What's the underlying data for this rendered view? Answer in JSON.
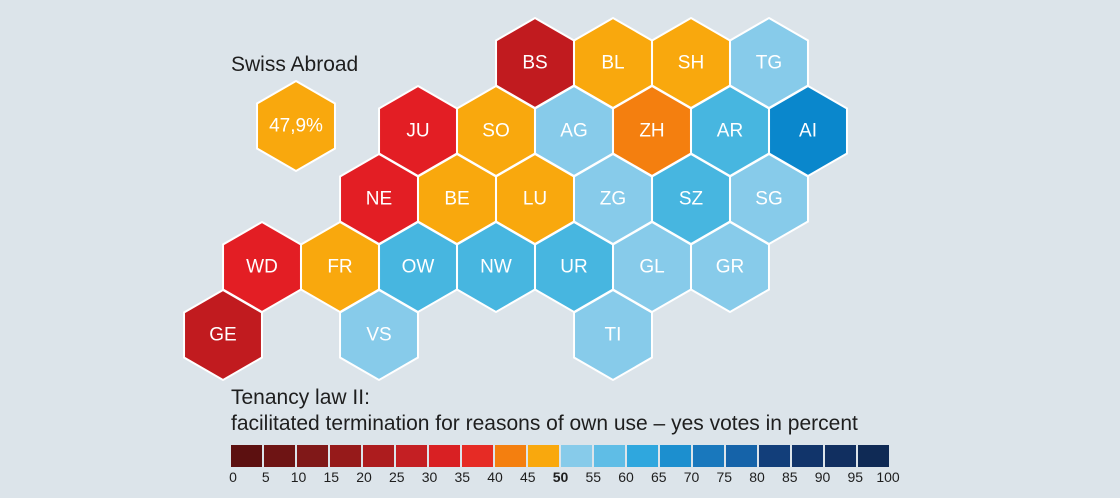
{
  "swiss_abroad": {
    "label": "Swiss Abroad",
    "value": "47,9%",
    "color": "#f9a80d"
  },
  "title": {
    "line1": "Tenancy law II:",
    "line2": "facilitated termination for reasons of own use – yes votes in percent"
  },
  "cantons": [
    {
      "code": "BS",
      "color": "#c11b1f",
      "row": 0,
      "col": 2
    },
    {
      "code": "BL",
      "color": "#f9a80d",
      "row": 0,
      "col": 3
    },
    {
      "code": "SH",
      "color": "#f9a80d",
      "row": 0,
      "col": 4
    },
    {
      "code": "TG",
      "color": "#87cbea",
      "row": 0,
      "col": 5
    },
    {
      "code": "JU",
      "color": "#e31e24",
      "row": 1,
      "col": 1
    },
    {
      "code": "SO",
      "color": "#f9a80d",
      "row": 1,
      "col": 2
    },
    {
      "code": "AG",
      "color": "#87cbea",
      "row": 1,
      "col": 3
    },
    {
      "code": "ZH",
      "color": "#f47f0f",
      "row": 1,
      "col": 4
    },
    {
      "code": "AR",
      "color": "#47b6e0",
      "row": 1,
      "col": 5
    },
    {
      "code": "AI",
      "color": "#0a87cc",
      "row": 1,
      "col": 6
    },
    {
      "code": "NE",
      "color": "#e31e24",
      "row": 2,
      "col": 1
    },
    {
      "code": "BE",
      "color": "#f9a80d",
      "row": 2,
      "col": 2
    },
    {
      "code": "LU",
      "color": "#f9a80d",
      "row": 2,
      "col": 3
    },
    {
      "code": "ZG",
      "color": "#87cbea",
      "row": 2,
      "col": 4
    },
    {
      "code": "SZ",
      "color": "#47b6e0",
      "row": 2,
      "col": 5
    },
    {
      "code": "SG",
      "color": "#87cbea",
      "row": 2,
      "col": 6
    },
    {
      "code": "WD",
      "color": "#e31e24",
      "row": 3,
      "col": 0
    },
    {
      "code": "FR",
      "color": "#f9a80d",
      "row": 3,
      "col": 1
    },
    {
      "code": "OW",
      "color": "#47b6e0",
      "row": 3,
      "col": 2
    },
    {
      "code": "NW",
      "color": "#47b6e0",
      "row": 3,
      "col": 3
    },
    {
      "code": "UR",
      "color": "#47b6e0",
      "row": 3,
      "col": 4
    },
    {
      "code": "GL",
      "color": "#87cbea",
      "row": 3,
      "col": 5
    },
    {
      "code": "GR",
      "color": "#87cbea",
      "row": 3,
      "col": 6
    },
    {
      "code": "GE",
      "color": "#c11b1f",
      "row": 4,
      "col": 0
    },
    {
      "code": "VS",
      "color": "#87cbea",
      "row": 4,
      "col": 2
    },
    {
      "code": "TI",
      "color": "#87cbea",
      "row": 4,
      "col": 5
    }
  ],
  "legend": {
    "colors": [
      "#5c1010",
      "#6e1414",
      "#801818",
      "#961a1a",
      "#ad1c1e",
      "#c41f23",
      "#d92023",
      "#e62b25",
      "#f47f0f",
      "#f9a80d",
      "#87cbea",
      "#5fbde6",
      "#2fa7de",
      "#1c8fcf",
      "#1978bd",
      "#1563a9",
      "#123e7a",
      "#11346a",
      "#112f60",
      "#0f2a55"
    ],
    "ticks": [
      "0",
      "5",
      "10",
      "15",
      "20",
      "25",
      "30",
      "35",
      "40",
      "45",
      "50",
      "55",
      "60",
      "65",
      "70",
      "75",
      "80",
      "85",
      "90",
      "95",
      "100"
    ],
    "bold_tick": "50"
  }
}
